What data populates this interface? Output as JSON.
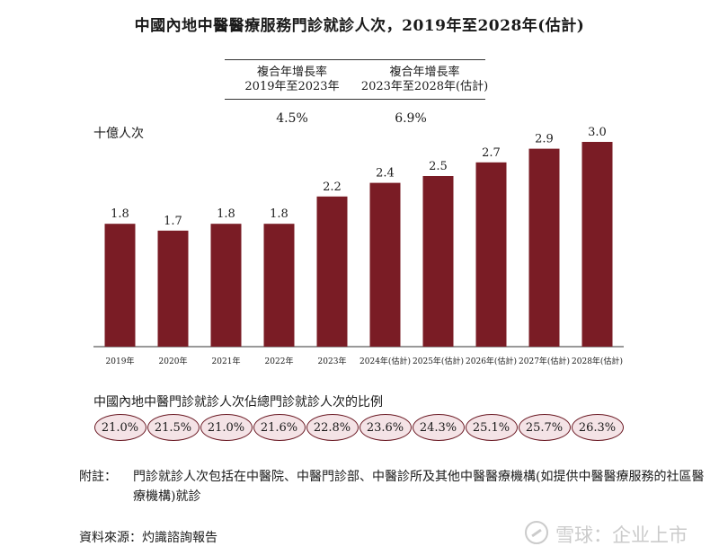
{
  "title": "中國內地中醫醫療服務門診就診人次，2019年至2028年(估計)",
  "cagr": [
    {
      "label_line1": "複合年增長率",
      "label_line2": "2019年至2023年",
      "value": "4.5%"
    },
    {
      "label_line1": "複合年增長率",
      "label_line2": "2023年至2028年(估計)",
      "value": "6.9%"
    }
  ],
  "unit_label": "十億人次",
  "colors": {
    "bar": "#7a1c25",
    "pill_fill": "#f4e3e6",
    "pill_border": "#6b1a24"
  },
  "chart_data": {
    "type": "bar",
    "title": "中國內地中醫醫療服務門診就診人次，2019年至2028年(估計)",
    "ylabel": "十億人次",
    "categories": [
      "2019年",
      "2020年",
      "2021年",
      "2022年",
      "2023年",
      "2024年(估計)",
      "2025年(估計)",
      "2026年(估計)",
      "2027年(估計)",
      "2028年(估計)"
    ],
    "values": [
      1.8,
      1.7,
      1.8,
      1.8,
      2.2,
      2.4,
      2.5,
      2.7,
      2.9,
      3.0
    ],
    "value_labels": [
      "1.8",
      "1.7",
      "1.8",
      "1.8",
      "2.2",
      "2.4",
      "2.5",
      "2.7",
      "2.9",
      "3.0"
    ],
    "ylim": [
      0,
      3.0
    ],
    "grid": false,
    "legend": "none"
  },
  "ratio_title": "中國內地中醫門診就診人次佔總門診就診人次的比例",
  "ratios": [
    "21.0%",
    "21.5%",
    "21.0%",
    "21.6%",
    "22.8%",
    "23.6%",
    "24.3%",
    "25.1%",
    "25.7%",
    "26.3%"
  ],
  "note_label": "附註：",
  "note_text": "門診就診人次包括在中醫院、中醫門診部、中醫診所及其他中醫醫療機構(如提供中醫醫療服務的社區醫療機構)就診",
  "source": "資料來源：灼識諮詢報告",
  "watermark": {
    "text": "雪球：企业上市",
    "icon": "snowball-logo-icon"
  }
}
